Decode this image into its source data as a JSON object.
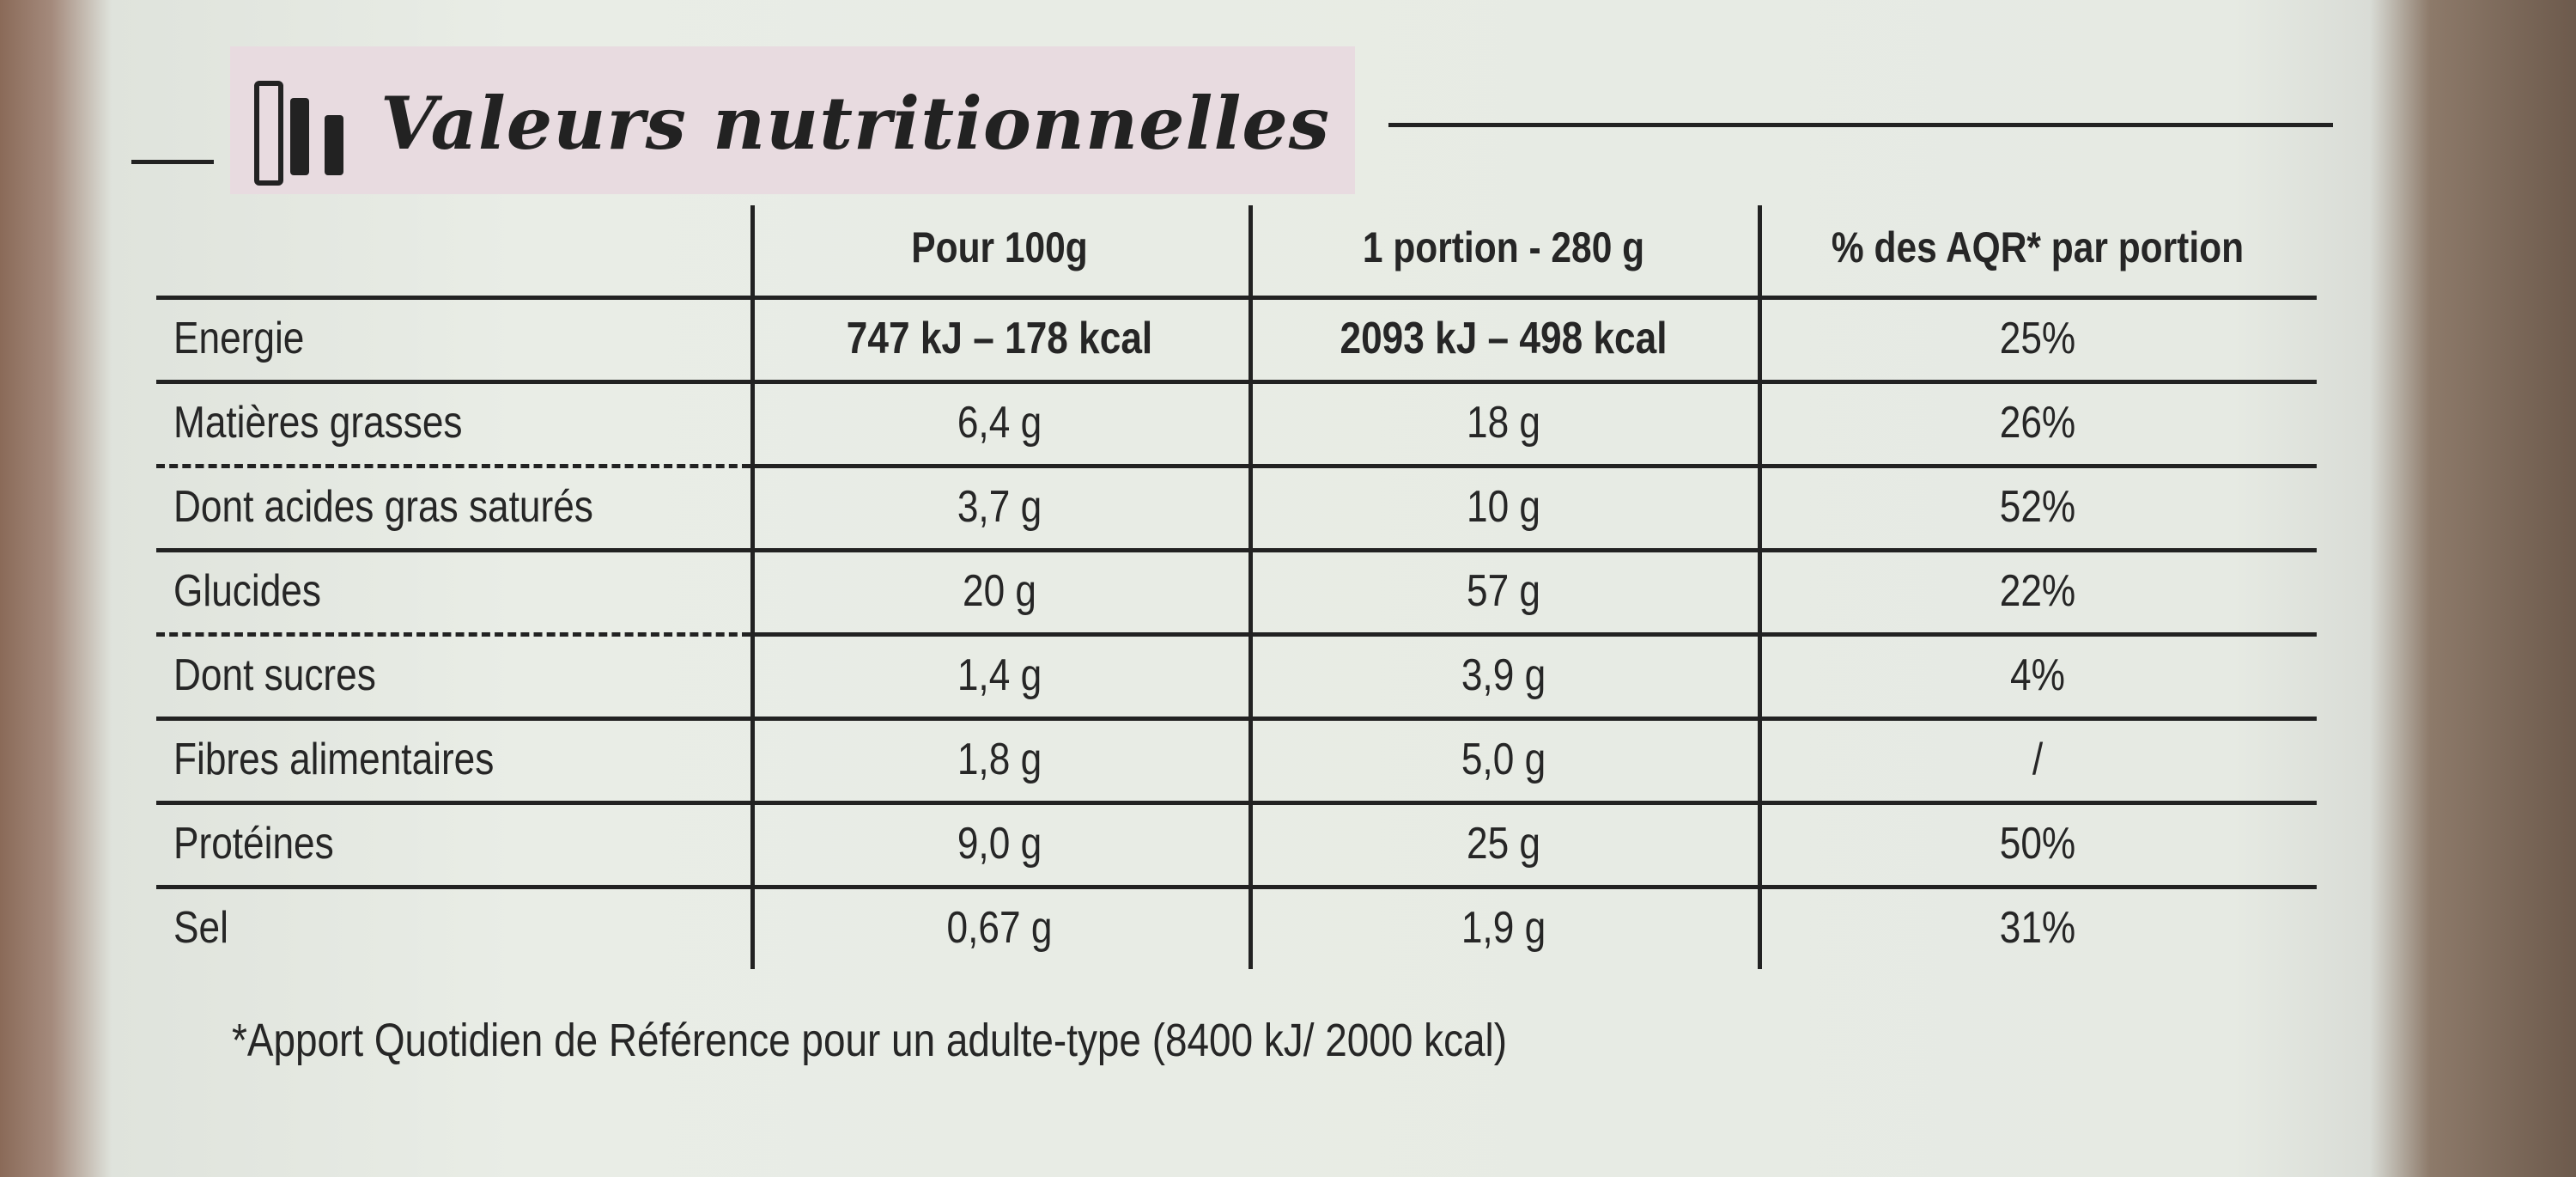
{
  "title": "Valeurs nutritionnelles",
  "table": {
    "header": [
      "Pour 100g",
      "1 portion - 280 g",
      "% des AQR* par portion"
    ],
    "rows": [
      [
        "Energie",
        "747 kJ – 178 kcal",
        "2093 kJ – 498 kcal",
        "25%"
      ],
      [
        "Matières grasses",
        "6,4 g",
        "18 g",
        "26%"
      ],
      [
        "Dont acides gras saturés",
        "3,7 g",
        "10 g",
        "52%"
      ],
      [
        "Glucides",
        "20 g",
        "57 g",
        "22%"
      ],
      [
        "Dont sucres",
        "1,4 g",
        "3,9 g",
        "4%"
      ],
      [
        "Fibres alimentaires",
        "1,8 g",
        "5,0 g",
        "/"
      ],
      [
        "Protéines",
        "9,0 g",
        "25 g",
        "50%"
      ],
      [
        "Sel",
        "0,67 g",
        "1,9 g",
        "31%"
      ]
    ]
  },
  "footnote": "*Apport Quotidien de Référence pour un adulte-type (8400 kJ/ 2000 kcal)"
}
